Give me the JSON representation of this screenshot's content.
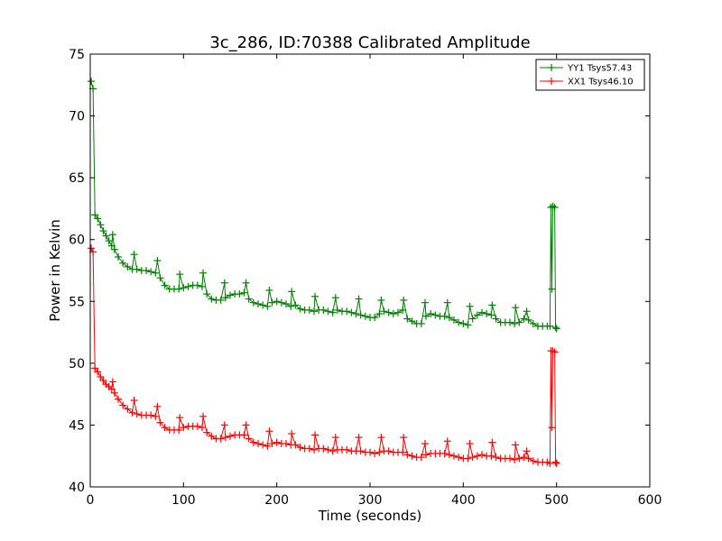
{
  "chart_data": {
    "type": "line",
    "title": "3c_286, ID:70388 Calibrated Amplitude",
    "xlabel": "Time (seconds)",
    "ylabel": "Power in Kelvin",
    "xlim": [
      0,
      600
    ],
    "ylim": [
      40,
      75
    ],
    "xticks": [
      "0",
      "100",
      "200",
      "300",
      "400",
      "500",
      "600"
    ],
    "yticks": [
      "40",
      "45",
      "50",
      "55",
      "60",
      "65",
      "70",
      "75"
    ],
    "grid": false,
    "legend_position": "top-right",
    "series": [
      {
        "name": "YY1 Tsys57.43",
        "color": "#008000",
        "marker": "+",
        "points": [
          [
            1,
            72.8
          ],
          [
            3,
            72.2
          ],
          [
            5,
            62.0
          ],
          [
            8,
            61.7
          ],
          [
            11,
            61.2
          ],
          [
            14,
            60.7
          ],
          [
            17,
            60.3
          ],
          [
            20,
            59.9
          ],
          [
            23,
            59.5
          ],
          [
            24,
            60.4
          ],
          [
            26,
            59.2
          ],
          [
            30,
            58.6
          ],
          [
            35,
            58.1
          ],
          [
            40,
            57.8
          ],
          [
            45,
            57.6
          ],
          [
            47,
            58.8
          ],
          [
            50,
            57.6
          ],
          [
            55,
            57.5
          ],
          [
            60,
            57.5
          ],
          [
            65,
            57.4
          ],
          [
            70,
            57.3
          ],
          [
            72,
            58.3
          ],
          [
            75,
            56.9
          ],
          [
            80,
            56.3
          ],
          [
            85,
            56.0
          ],
          [
            90,
            56.0
          ],
          [
            95,
            56.0
          ],
          [
            96,
            57.2
          ],
          [
            100,
            56.1
          ],
          [
            105,
            56.2
          ],
          [
            110,
            56.3
          ],
          [
            115,
            56.3
          ],
          [
            120,
            56.2
          ],
          [
            121,
            57.3
          ],
          [
            125,
            55.6
          ],
          [
            130,
            55.2
          ],
          [
            135,
            55.1
          ],
          [
            140,
            55.1
          ],
          [
            144,
            56.5
          ],
          [
            145,
            55.3
          ],
          [
            150,
            55.5
          ],
          [
            155,
            55.6
          ],
          [
            160,
            55.6
          ],
          [
            165,
            55.7
          ],
          [
            167,
            56.5
          ],
          [
            170,
            55.2
          ],
          [
            175,
            54.9
          ],
          [
            180,
            54.8
          ],
          [
            185,
            54.7
          ],
          [
            190,
            54.6
          ],
          [
            192,
            55.9
          ],
          [
            195,
            54.9
          ],
          [
            200,
            55.0
          ],
          [
            205,
            54.9
          ],
          [
            210,
            54.8
          ],
          [
            215,
            54.6
          ],
          [
            216,
            55.8
          ],
          [
            220,
            54.7
          ],
          [
            225,
            54.4
          ],
          [
            230,
            54.3
          ],
          [
            235,
            54.3
          ],
          [
            240,
            54.2
          ],
          [
            241,
            55.4
          ],
          [
            245,
            54.3
          ],
          [
            250,
            54.3
          ],
          [
            255,
            54.2
          ],
          [
            260,
            54.1
          ],
          [
            263,
            55.3
          ],
          [
            265,
            54.3
          ],
          [
            270,
            54.2
          ],
          [
            275,
            54.2
          ],
          [
            280,
            54.1
          ],
          [
            285,
            54.0
          ],
          [
            288,
            55.2
          ],
          [
            290,
            53.9
          ],
          [
            295,
            53.8
          ],
          [
            300,
            53.7
          ],
          [
            305,
            53.7
          ],
          [
            310,
            54.0
          ],
          [
            312,
            55.1
          ],
          [
            315,
            54.2
          ],
          [
            320,
            54.1
          ],
          [
            325,
            54.0
          ],
          [
            330,
            54.1
          ],
          [
            335,
            54.3
          ],
          [
            336,
            55.1
          ],
          [
            340,
            53.6
          ],
          [
            345,
            53.4
          ],
          [
            350,
            53.2
          ],
          [
            355,
            53.2
          ],
          [
            359,
            54.9
          ],
          [
            360,
            53.8
          ],
          [
            365,
            54.0
          ],
          [
            370,
            53.9
          ],
          [
            375,
            53.8
          ],
          [
            380,
            53.8
          ],
          [
            383,
            54.9
          ],
          [
            385,
            53.7
          ],
          [
            390,
            53.5
          ],
          [
            395,
            53.3
          ],
          [
            400,
            53.2
          ],
          [
            405,
            53.1
          ],
          [
            407,
            54.6
          ],
          [
            410,
            53.6
          ],
          [
            415,
            53.9
          ],
          [
            420,
            54.1
          ],
          [
            425,
            54.0
          ],
          [
            430,
            53.9
          ],
          [
            431,
            54.7
          ],
          [
            435,
            53.6
          ],
          [
            440,
            53.3
          ],
          [
            445,
            53.3
          ],
          [
            450,
            53.3
          ],
          [
            455,
            53.2
          ],
          [
            456,
            54.5
          ],
          [
            460,
            53.3
          ],
          [
            465,
            53.6
          ],
          [
            468,
            54.2
          ],
          [
            470,
            53.5
          ],
          [
            475,
            53.2
          ],
          [
            480,
            53.0
          ],
          [
            485,
            53.0
          ],
          [
            490,
            53.0
          ],
          [
            493,
            53.0
          ],
          [
            494,
            62.6
          ],
          [
            495,
            56.0
          ],
          [
            496,
            62.7
          ],
          [
            498,
            62.6
          ],
          [
            499,
            52.9
          ],
          [
            500,
            52.8
          ]
        ]
      },
      {
        "name": "XX1 Tsys46.10",
        "color": "#ff0000",
        "marker": "+",
        "points": [
          [
            1,
            59.3
          ],
          [
            3,
            59.0
          ],
          [
            5,
            49.6
          ],
          [
            8,
            49.3
          ],
          [
            11,
            48.9
          ],
          [
            14,
            48.6
          ],
          [
            17,
            48.3
          ],
          [
            20,
            48.1
          ],
          [
            23,
            47.9
          ],
          [
            24,
            48.5
          ],
          [
            26,
            47.6
          ],
          [
            30,
            47.1
          ],
          [
            35,
            46.6
          ],
          [
            40,
            46.3
          ],
          [
            45,
            46.0
          ],
          [
            47,
            47.0
          ],
          [
            50,
            45.9
          ],
          [
            55,
            45.8
          ],
          [
            60,
            45.8
          ],
          [
            65,
            45.8
          ],
          [
            70,
            45.7
          ],
          [
            72,
            46.5
          ],
          [
            75,
            45.2
          ],
          [
            80,
            44.8
          ],
          [
            85,
            44.6
          ],
          [
            90,
            44.6
          ],
          [
            95,
            44.6
          ],
          [
            96,
            45.6
          ],
          [
            100,
            44.8
          ],
          [
            105,
            44.9
          ],
          [
            110,
            44.9
          ],
          [
            115,
            44.9
          ],
          [
            120,
            44.8
          ],
          [
            121,
            45.7
          ],
          [
            125,
            44.4
          ],
          [
            130,
            44.1
          ],
          [
            135,
            43.9
          ],
          [
            140,
            43.9
          ],
          [
            144,
            45.0
          ],
          [
            145,
            44.0
          ],
          [
            150,
            44.1
          ],
          [
            155,
            44.2
          ],
          [
            160,
            44.2
          ],
          [
            165,
            44.2
          ],
          [
            167,
            45.0
          ],
          [
            170,
            43.9
          ],
          [
            175,
            43.6
          ],
          [
            180,
            43.5
          ],
          [
            185,
            43.4
          ],
          [
            190,
            43.3
          ],
          [
            192,
            44.5
          ],
          [
            195,
            43.5
          ],
          [
            200,
            43.6
          ],
          [
            205,
            43.5
          ],
          [
            210,
            43.5
          ],
          [
            215,
            43.4
          ],
          [
            216,
            44.3
          ],
          [
            220,
            43.4
          ],
          [
            225,
            43.2
          ],
          [
            230,
            43.1
          ],
          [
            235,
            43.1
          ],
          [
            240,
            43.0
          ],
          [
            241,
            44.2
          ],
          [
            245,
            43.1
          ],
          [
            250,
            43.1
          ],
          [
            255,
            43.0
          ],
          [
            260,
            42.9
          ],
          [
            263,
            44.0
          ],
          [
            265,
            43.0
          ],
          [
            270,
            43.0
          ],
          [
            275,
            43.0
          ],
          [
            280,
            42.9
          ],
          [
            285,
            42.9
          ],
          [
            288,
            44.0
          ],
          [
            290,
            42.9
          ],
          [
            295,
            42.8
          ],
          [
            300,
            42.8
          ],
          [
            305,
            42.7
          ],
          [
            310,
            42.8
          ],
          [
            312,
            44.0
          ],
          [
            315,
            42.9
          ],
          [
            320,
            42.9
          ],
          [
            325,
            42.8
          ],
          [
            330,
            42.8
          ],
          [
            335,
            42.8
          ],
          [
            336,
            44.0
          ],
          [
            340,
            42.6
          ],
          [
            345,
            42.5
          ],
          [
            350,
            42.4
          ],
          [
            355,
            42.4
          ],
          [
            359,
            43.5
          ],
          [
            360,
            42.6
          ],
          [
            365,
            42.7
          ],
          [
            370,
            42.7
          ],
          [
            375,
            42.7
          ],
          [
            380,
            42.7
          ],
          [
            383,
            43.7
          ],
          [
            385,
            42.6
          ],
          [
            390,
            42.5
          ],
          [
            395,
            42.4
          ],
          [
            400,
            42.3
          ],
          [
            405,
            42.3
          ],
          [
            407,
            43.5
          ],
          [
            410,
            42.4
          ],
          [
            415,
            42.5
          ],
          [
            420,
            42.6
          ],
          [
            425,
            42.5
          ],
          [
            430,
            42.5
          ],
          [
            431,
            43.6
          ],
          [
            435,
            42.4
          ],
          [
            440,
            42.3
          ],
          [
            445,
            42.3
          ],
          [
            450,
            42.3
          ],
          [
            455,
            42.2
          ],
          [
            456,
            43.4
          ],
          [
            460,
            42.3
          ],
          [
            465,
            42.4
          ],
          [
            468,
            42.9
          ],
          [
            470,
            42.3
          ],
          [
            475,
            42.1
          ],
          [
            480,
            42.0
          ],
          [
            485,
            42.0
          ],
          [
            490,
            42.0
          ],
          [
            493,
            41.9
          ],
          [
            494,
            51.0
          ],
          [
            495,
            44.8
          ],
          [
            496,
            51.0
          ],
          [
            498,
            50.9
          ],
          [
            499,
            42.0
          ],
          [
            500,
            41.9
          ]
        ]
      }
    ]
  }
}
